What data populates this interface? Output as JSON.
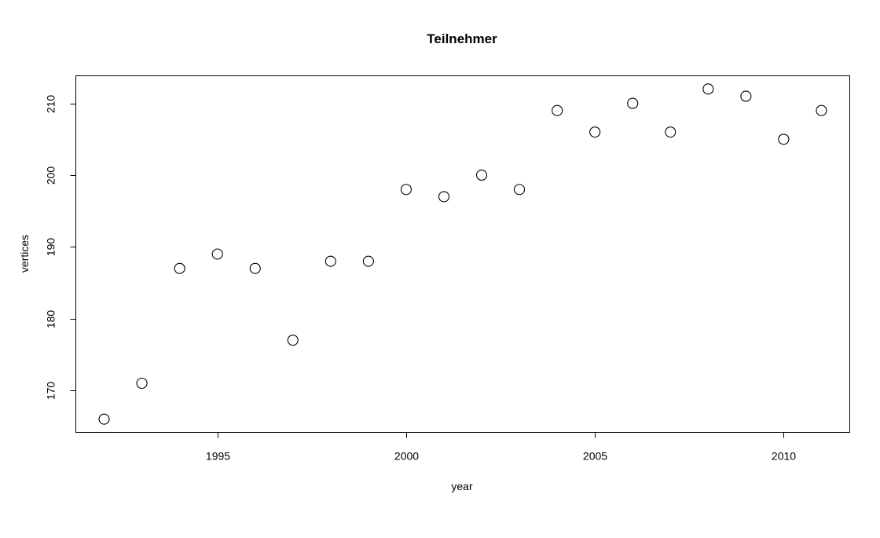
{
  "chart_data": {
    "type": "scatter",
    "title": "Teilnehmer",
    "xlabel": "year",
    "ylabel": "vertices",
    "x": [
      1992,
      1993,
      1994,
      1995,
      1996,
      1997,
      1998,
      1999,
      2000,
      2001,
      2002,
      2003,
      2004,
      2005,
      2006,
      2007,
      2008,
      2009,
      2010,
      2011
    ],
    "y": [
      166,
      171,
      187,
      189,
      187,
      177,
      188,
      188,
      198,
      197,
      200,
      198,
      209,
      206,
      210,
      206,
      212,
      211,
      205,
      209
    ],
    "xlim": [
      1991.25,
      2011.75
    ],
    "ylim": [
      164.16,
      213.84
    ],
    "xticks": [
      1995,
      2000,
      2005,
      2010
    ],
    "yticks": [
      170,
      180,
      190,
      200,
      210
    ],
    "grid": false,
    "legend": "none",
    "marker": "open-circle"
  }
}
